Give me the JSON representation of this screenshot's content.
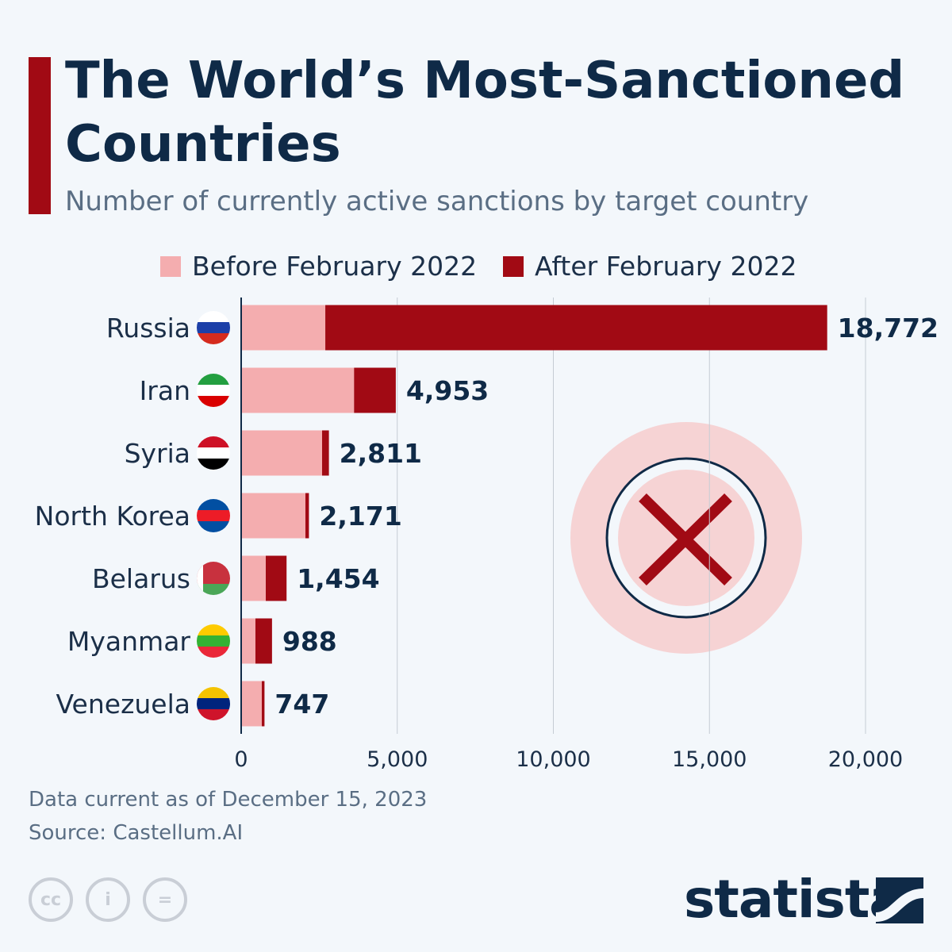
{
  "title": "The World’s Most-Sanctioned Countries",
  "subtitle": "Number of currently active sanctions by target country",
  "footer": {
    "note": "Data current as of December 15, 2023",
    "source": "Source: Castellum.AI",
    "brand": "statista"
  },
  "colors": {
    "before": "#f4adaf",
    "after": "#a10a14",
    "title": "#0f2a47"
  },
  "chart_data": {
    "type": "bar",
    "orientation": "horizontal",
    "stacked": true,
    "categories": [
      "Russia",
      "Iran",
      "Syria",
      "North Korea",
      "Belarus",
      "Myanmar",
      "Venezuela"
    ],
    "series": [
      {
        "name": "Before February 2022",
        "values": [
          2695,
          3616,
          2592,
          2058,
          788,
          457,
          661
        ]
      },
      {
        "name": "After February 2022",
        "values": [
          16077,
          1337,
          219,
          113,
          666,
          531,
          86
        ]
      }
    ],
    "totals": [
      18772,
      4953,
      2811,
      2171,
      1454,
      988,
      747
    ],
    "total_labels": [
      "18,772",
      "4,953",
      "2,811",
      "2,171",
      "1,454",
      "988",
      "747"
    ],
    "xlim": [
      0,
      20000
    ],
    "xticks": [
      0,
      5000,
      10000,
      15000,
      20000
    ],
    "xtick_labels": [
      "0",
      "5,000",
      "10,000",
      "15,000",
      "20,000"
    ],
    "grid": true,
    "legend": "top",
    "flags": [
      "russia-flag",
      "iran-flag",
      "syria-flag",
      "north-korea-flag",
      "belarus-flag",
      "myanmar-flag",
      "venezuela-flag"
    ]
  }
}
